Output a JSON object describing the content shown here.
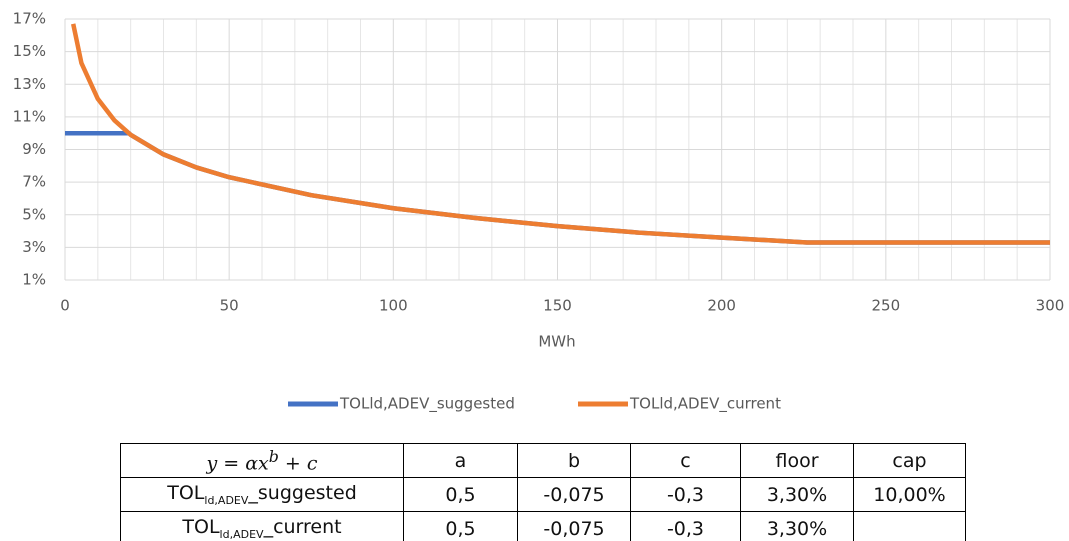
{
  "chart_data": {
    "type": "line",
    "xlabel": "MWh",
    "xlim": [
      0,
      300
    ],
    "xticks": [
      0,
      50,
      100,
      150,
      200,
      250,
      300
    ],
    "minor_xticks": [
      10,
      20,
      30,
      40,
      60,
      70,
      80,
      90,
      110,
      120,
      130,
      140,
      160,
      170,
      180,
      190,
      210,
      220,
      230,
      240,
      260,
      270,
      280,
      290
    ],
    "ylim": [
      1,
      17
    ],
    "yticks": [
      {
        "value": 1,
        "label": "1%"
      },
      {
        "value": 3,
        "label": "3%"
      },
      {
        "value": 5,
        "label": "5%"
      },
      {
        "value": 7,
        "label": "7%"
      },
      {
        "value": 9,
        "label": "9%"
      },
      {
        "value": 11,
        "label": "11%"
      },
      {
        "value": 13,
        "label": "13%"
      },
      {
        "value": 15,
        "label": "15%"
      },
      {
        "value": 17,
        "label": "17%"
      }
    ],
    "grid": true,
    "legend": "bottom",
    "series": [
      {
        "name": "TOLld,ADEV_suggested",
        "color": "#4472c4",
        "x": [
          0,
          19.5,
          20,
          30,
          40,
          50,
          75,
          100,
          125,
          150,
          175,
          200,
          226,
          250,
          300
        ],
        "values": [
          10,
          10,
          9.9,
          8.7,
          7.9,
          7.3,
          6.2,
          5.4,
          4.8,
          4.3,
          3.9,
          3.6,
          3.3,
          3.3,
          3.3
        ]
      },
      {
        "name": "TOLld,ADEV_current",
        "color": "#ed7d31",
        "x": [
          2.5,
          5,
          10,
          15,
          20,
          30,
          40,
          50,
          75,
          100,
          125,
          150,
          175,
          200,
          226,
          250,
          300
        ],
        "values": [
          16.7,
          14.3,
          12.1,
          10.8,
          9.9,
          8.7,
          7.9,
          7.3,
          6.2,
          5.4,
          4.8,
          4.3,
          3.9,
          3.6,
          3.3,
          3.3,
          3.3
        ]
      }
    ]
  },
  "table": {
    "header": [
      {
        "pre": "y = αx",
        "sup": "b",
        "post": " + c"
      },
      "a",
      "b",
      "c",
      "floor",
      "cap"
    ],
    "rows": [
      [
        {
          "base": "TOL",
          "sub": "ld,ADEV",
          "suffix": "_suggested"
        },
        "0,5",
        "-0,075",
        "-0,3",
        "3,30%",
        "10,00%"
      ],
      [
        {
          "base": "TOL",
          "sub": "ld,ADEV",
          "suffix": "_current"
        },
        "0,5",
        "-0,075",
        "-0,3",
        "3,30%"
      ]
    ]
  }
}
